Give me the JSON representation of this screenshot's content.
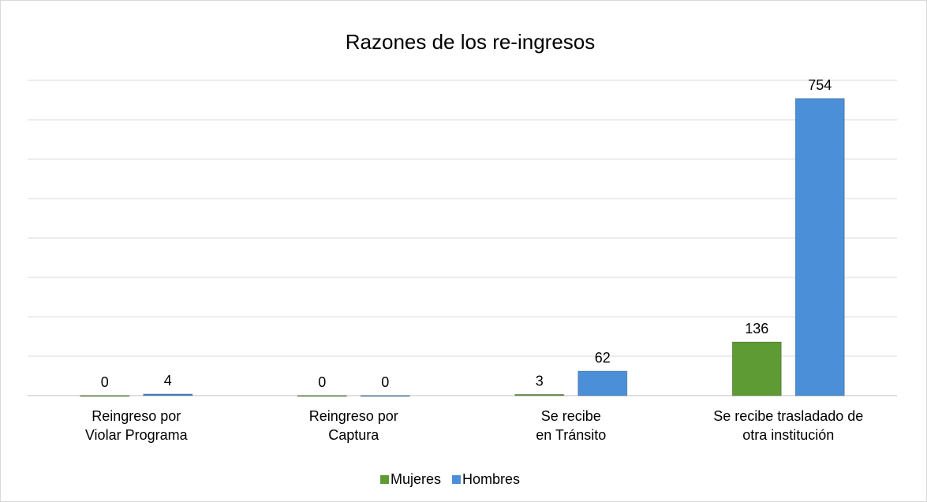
{
  "chart_data": {
    "type": "bar",
    "title": "Razones de los re-ingresos",
    "categories": [
      "Reingreso por\nViolar Programa",
      "Reingreso por\nCaptura",
      "Se recibe\nen Tránsito",
      "Se recibe trasladado de\notra institución"
    ],
    "series": [
      {
        "name": "Mujeres",
        "color": "#5f9b34",
        "values": [
          0,
          0,
          3,
          136
        ]
      },
      {
        "name": "Hombres",
        "color": "#4a8fd8",
        "values": [
          4,
          0,
          62,
          754
        ]
      }
    ],
    "ylim": [
      0,
      800
    ],
    "yticks": [
      0,
      100,
      200,
      300,
      400,
      500,
      600,
      700,
      800
    ],
    "grid": true,
    "legend": "bottom"
  }
}
